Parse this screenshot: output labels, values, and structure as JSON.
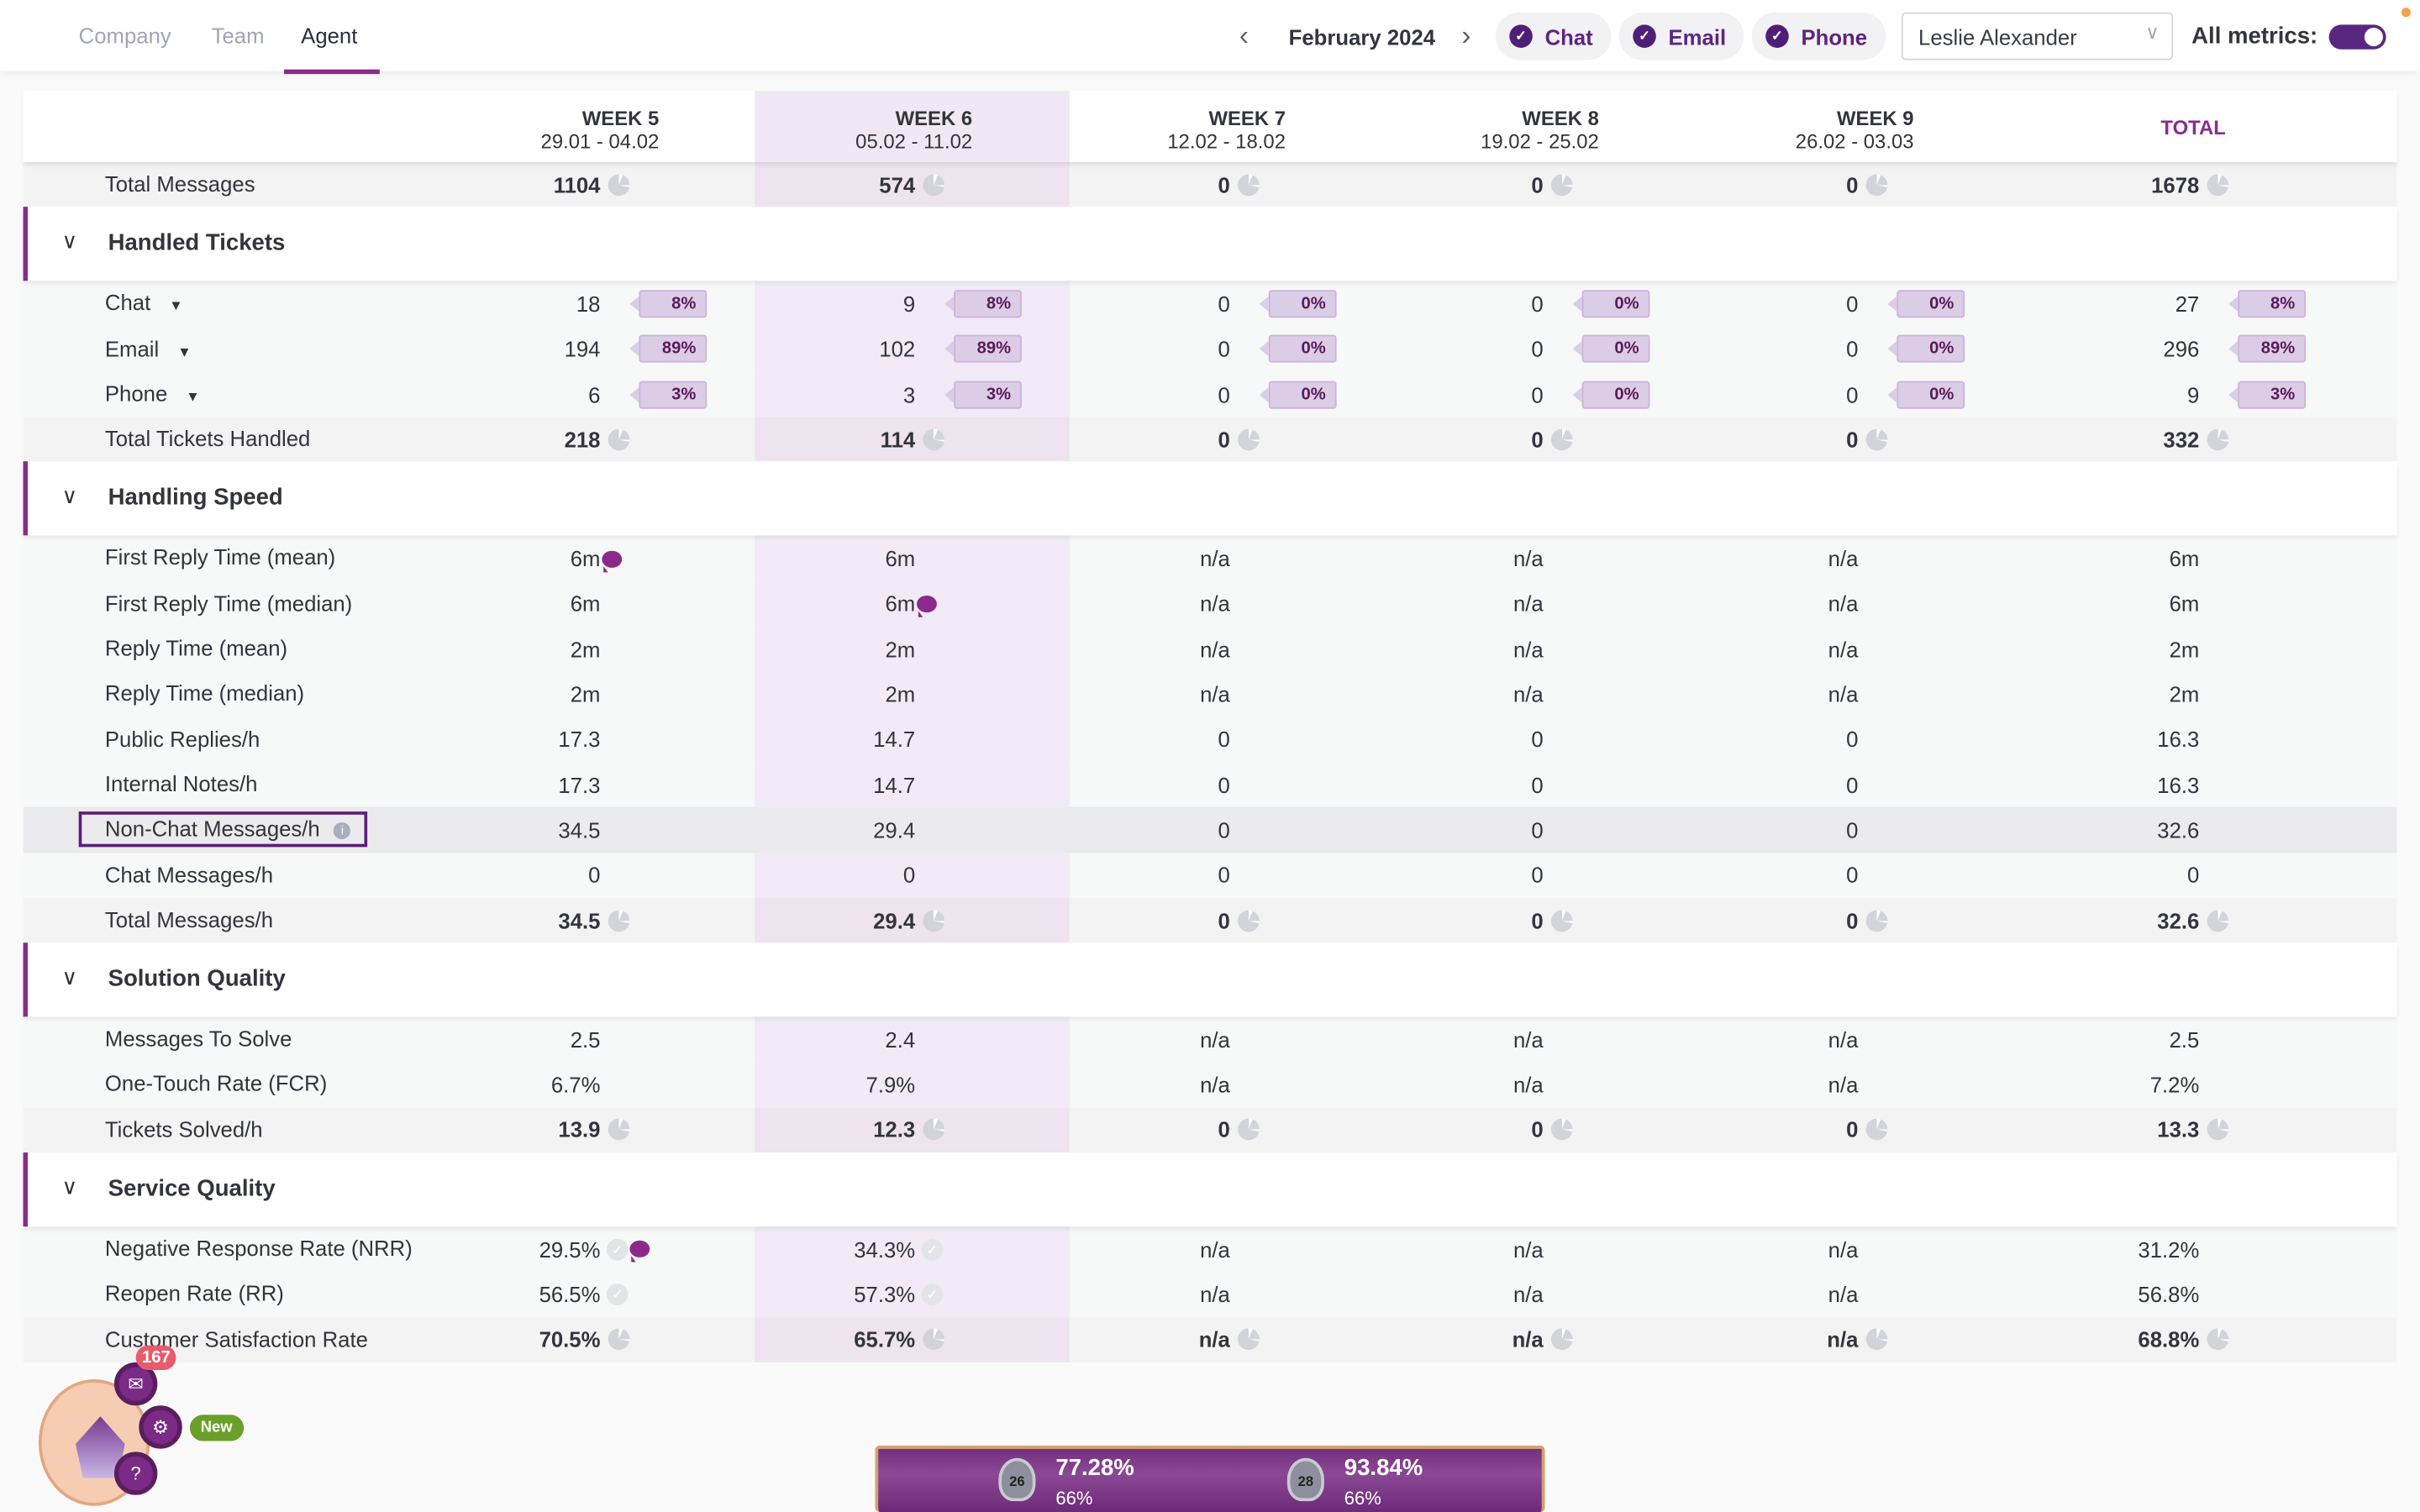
{
  "tabs": [
    {
      "label": "Company",
      "active": false
    },
    {
      "label": "Team",
      "active": false
    },
    {
      "label": "Agent",
      "active": true
    }
  ],
  "period": {
    "label": "February 2024",
    "prev_icon": "chevron-left-icon",
    "next_icon": "chevron-right-icon"
  },
  "channels": [
    {
      "label": "Chat",
      "checked": true
    },
    {
      "label": "Email",
      "checked": true
    },
    {
      "label": "Phone",
      "checked": true
    }
  ],
  "agent_select": {
    "value": "Leslie Alexander"
  },
  "all_metrics": {
    "label": "All metrics:",
    "on": true
  },
  "columns": [
    {
      "week": "WEEK 5",
      "range": "29.01 - 04.02"
    },
    {
      "week": "WEEK 6",
      "range": "05.02 - 11.02",
      "highlighted": true
    },
    {
      "week": "WEEK 7",
      "range": "12.02 - 18.02"
    },
    {
      "week": "WEEK 8",
      "range": "19.02 - 25.02"
    },
    {
      "week": "WEEK 9",
      "range": "26.02 - 03.03"
    }
  ],
  "total_header": "TOTAL",
  "colors": {
    "accent": "#8a2b8c",
    "highlight_column": "#f0e8f4",
    "badge": "#dccde6"
  },
  "blocks": [
    {
      "rows": [
        {
          "label": "Total Messages",
          "total": true,
          "cells": [
            {
              "v": "1104",
              "icon": "pie"
            },
            {
              "v": "574",
              "icon": "pie"
            },
            {
              "v": "0",
              "icon": "pie"
            },
            {
              "v": "0",
              "icon": "pie"
            },
            {
              "v": "0",
              "icon": "pie"
            },
            {
              "v": "1678",
              "icon": "pie"
            }
          ]
        }
      ]
    },
    {
      "title": "Handled Tickets",
      "rows": [
        {
          "label": "Chat",
          "dropdown": true,
          "cells": [
            {
              "v": "18",
              "badge": "8%"
            },
            {
              "v": "9",
              "badge": "8%"
            },
            {
              "v": "0",
              "badge": "0%"
            },
            {
              "v": "0",
              "badge": "0%"
            },
            {
              "v": "0",
              "badge": "0%"
            },
            {
              "v": "27",
              "badge": "8%"
            }
          ]
        },
        {
          "label": "Email",
          "dropdown": true,
          "cells": [
            {
              "v": "194",
              "badge": "89%"
            },
            {
              "v": "102",
              "badge": "89%"
            },
            {
              "v": "0",
              "badge": "0%"
            },
            {
              "v": "0",
              "badge": "0%"
            },
            {
              "v": "0",
              "badge": "0%"
            },
            {
              "v": "296",
              "badge": "89%"
            }
          ]
        },
        {
          "label": "Phone",
          "dropdown": true,
          "cells": [
            {
              "v": "6",
              "badge": "3%"
            },
            {
              "v": "3",
              "badge": "3%"
            },
            {
              "v": "0",
              "badge": "0%"
            },
            {
              "v": "0",
              "badge": "0%"
            },
            {
              "v": "0",
              "badge": "0%"
            },
            {
              "v": "9",
              "badge": "3%"
            }
          ]
        },
        {
          "label": "Total Tickets Handled",
          "total": true,
          "cells": [
            {
              "v": "218",
              "icon": "pie"
            },
            {
              "v": "114",
              "icon": "pie"
            },
            {
              "v": "0",
              "icon": "pie"
            },
            {
              "v": "0",
              "icon": "pie"
            },
            {
              "v": "0",
              "icon": "pie"
            },
            {
              "v": "332",
              "icon": "pie"
            }
          ]
        }
      ]
    },
    {
      "title": "Handling Speed",
      "rows": [
        {
          "label": "First Reply Time (mean)",
          "cells": [
            {
              "v": "6m",
              "icon": "comment"
            },
            {
              "v": "6m"
            },
            {
              "v": "n/a"
            },
            {
              "v": "n/a"
            },
            {
              "v": "n/a"
            },
            {
              "v": "6m"
            }
          ]
        },
        {
          "label": "First Reply Time (median)",
          "cells": [
            {
              "v": "6m"
            },
            {
              "v": "6m",
              "icon": "comment"
            },
            {
              "v": "n/a"
            },
            {
              "v": "n/a"
            },
            {
              "v": "n/a"
            },
            {
              "v": "6m"
            }
          ]
        },
        {
          "label": "Reply Time (mean)",
          "cells": [
            {
              "v": "2m"
            },
            {
              "v": "2m"
            },
            {
              "v": "n/a"
            },
            {
              "v": "n/a"
            },
            {
              "v": "n/a"
            },
            {
              "v": "2m"
            }
          ]
        },
        {
          "label": "Reply Time (median)",
          "cells": [
            {
              "v": "2m"
            },
            {
              "v": "2m"
            },
            {
              "v": "n/a"
            },
            {
              "v": "n/a"
            },
            {
              "v": "n/a"
            },
            {
              "v": "2m"
            }
          ]
        },
        {
          "label": "Public Replies/h",
          "cells": [
            {
              "v": "17.3"
            },
            {
              "v": "14.7"
            },
            {
              "v": "0"
            },
            {
              "v": "0"
            },
            {
              "v": "0"
            },
            {
              "v": "16.3"
            }
          ]
        },
        {
          "label": "Internal Notes/h",
          "cells": [
            {
              "v": "17.3"
            },
            {
              "v": "14.7"
            },
            {
              "v": "0"
            },
            {
              "v": "0"
            },
            {
              "v": "0"
            },
            {
              "v": "16.3"
            }
          ]
        },
        {
          "label": "Non-Chat Messages/h",
          "info": true,
          "selected": true,
          "cells": [
            {
              "v": "34.5"
            },
            {
              "v": "29.4"
            },
            {
              "v": "0"
            },
            {
              "v": "0"
            },
            {
              "v": "0"
            },
            {
              "v": "32.6"
            }
          ]
        },
        {
          "label": "Chat Messages/h",
          "cells": [
            {
              "v": "0"
            },
            {
              "v": "0"
            },
            {
              "v": "0"
            },
            {
              "v": "0"
            },
            {
              "v": "0"
            },
            {
              "v": "0"
            }
          ]
        },
        {
          "label": "Total Messages/h",
          "total": true,
          "cells": [
            {
              "v": "34.5",
              "icon": "pie"
            },
            {
              "v": "29.4",
              "icon": "pie"
            },
            {
              "v": "0",
              "icon": "pie"
            },
            {
              "v": "0",
              "icon": "pie"
            },
            {
              "v": "0",
              "icon": "pie"
            },
            {
              "v": "32.6",
              "icon": "pie"
            }
          ]
        }
      ]
    },
    {
      "title": "Solution Quality",
      "rows": [
        {
          "label": "Messages To Solve",
          "cells": [
            {
              "v": "2.5"
            },
            {
              "v": "2.4"
            },
            {
              "v": "n/a"
            },
            {
              "v": "n/a"
            },
            {
              "v": "n/a"
            },
            {
              "v": "2.5"
            }
          ]
        },
        {
          "label": "One-Touch Rate (FCR)",
          "cells": [
            {
              "v": "6.7%"
            },
            {
              "v": "7.9%"
            },
            {
              "v": "n/a"
            },
            {
              "v": "n/a"
            },
            {
              "v": "n/a"
            },
            {
              "v": "7.2%"
            }
          ]
        },
        {
          "label": "Tickets Solved/h",
          "total": true,
          "cells": [
            {
              "v": "13.9",
              "icon": "pie"
            },
            {
              "v": "12.3",
              "icon": "pie"
            },
            {
              "v": "0",
              "icon": "pie"
            },
            {
              "v": "0",
              "icon": "pie"
            },
            {
              "v": "0",
              "icon": "pie"
            },
            {
              "v": "13.3",
              "icon": "pie"
            }
          ]
        }
      ]
    },
    {
      "title": "Service Quality",
      "rows": [
        {
          "label": "Negative Response Rate (NRR)",
          "cells": [
            {
              "v": "29.5%",
              "icon": "check",
              "icon2": "comment"
            },
            {
              "v": "34.3%",
              "icon": "check"
            },
            {
              "v": "n/a"
            },
            {
              "v": "n/a"
            },
            {
              "v": "n/a"
            },
            {
              "v": "31.2%"
            }
          ]
        },
        {
          "label": "Reopen Rate (RR)",
          "cells": [
            {
              "v": "56.5%",
              "icon": "check"
            },
            {
              "v": "57.3%",
              "icon": "check"
            },
            {
              "v": "n/a"
            },
            {
              "v": "n/a"
            },
            {
              "v": "n/a"
            },
            {
              "v": "56.8%"
            }
          ]
        },
        {
          "label": "Customer Satisfaction Rate",
          "total": true,
          "cells": [
            {
              "v": "70.5%",
              "icon": "pie"
            },
            {
              "v": "65.7%",
              "icon": "pie"
            },
            {
              "v": "n/a",
              "icon": "pie"
            },
            {
              "v": "n/a",
              "icon": "pie"
            },
            {
              "v": "n/a",
              "icon": "pie"
            },
            {
              "v": "68.8%",
              "icon": "pie"
            }
          ]
        }
      ]
    }
  ],
  "widget": {
    "notification_count": "167",
    "new_label": "New",
    "help_label": "?"
  },
  "scorebar": [
    {
      "rank": "26",
      "pct": "77.28%",
      "sub": "66%"
    },
    {
      "rank": "28",
      "pct": "93.84%",
      "sub": "66%"
    }
  ]
}
